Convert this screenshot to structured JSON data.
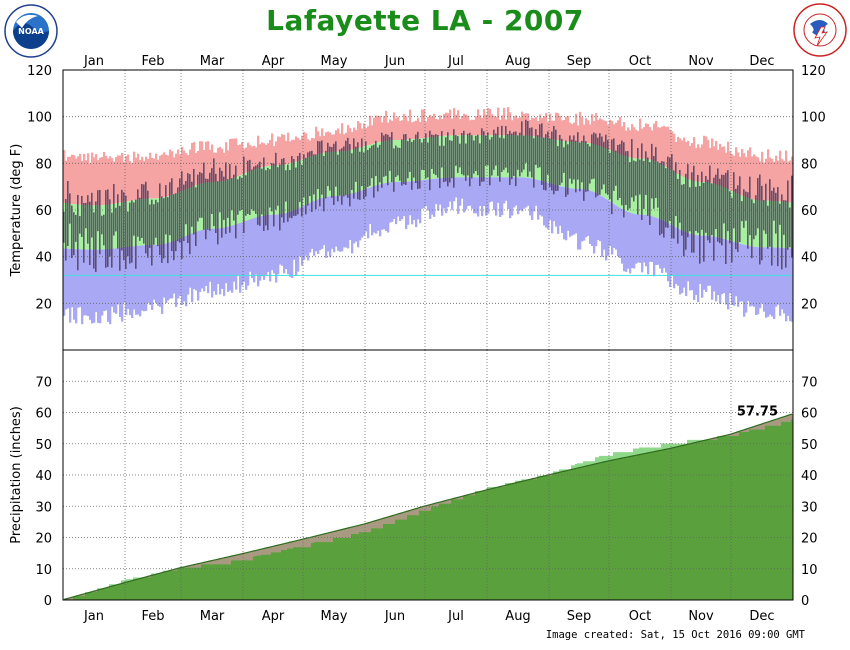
{
  "title": "Lafayette LA - 2007",
  "logos": {
    "noaa": "NOAA",
    "nws": "NATIONAL WEATHER SERVICE"
  },
  "footer": {
    "created": "Image created: Sat, 15 Oct 2016 09:00 GMT"
  },
  "colors": {
    "record_high": "#f5a3a3",
    "normal_range": "#a6f0a0",
    "record_low": "#a8a8f5",
    "observed": "#4a3a5a",
    "freezing_line": "#40e0e0",
    "precip_observed": "#5aa03c",
    "precip_normal": "#8fd88a",
    "precip_below": "#a89a80",
    "title": "#1a8c1a"
  },
  "chart_data": [
    {
      "type": "area",
      "panel": "temperature",
      "ylabel": "Temperature (deg F)",
      "ylim": [
        0,
        120
      ],
      "yticks": [
        20,
        40,
        60,
        80,
        100,
        120
      ],
      "months": [
        "Jan",
        "Feb",
        "Mar",
        "Apr",
        "May",
        "Jun",
        "Jul",
        "Aug",
        "Sep",
        "Oct",
        "Nov",
        "Dec"
      ],
      "grid": true,
      "freezing_line": 32,
      "series": [
        {
          "name": "record_high",
          "months": [
            81,
            82,
            86,
            89,
            93,
            99,
            100,
            100,
            98,
            95,
            88,
            82
          ]
        },
        {
          "name": "normal_high",
          "months": [
            62,
            65,
            72,
            79,
            85,
            90,
            92,
            92,
            89,
            82,
            72,
            64
          ]
        },
        {
          "name": "normal_low",
          "months": [
            43,
            45,
            52,
            58,
            66,
            72,
            74,
            74,
            69,
            58,
            49,
            44
          ]
        },
        {
          "name": "record_low",
          "months": [
            16,
            20,
            27,
            34,
            45,
            56,
            63,
            62,
            48,
            37,
            26,
            18
          ]
        },
        {
          "name": "observed_high",
          "months": [
            64,
            66,
            77,
            80,
            87,
            90,
            91,
            95,
            90,
            85,
            74,
            69
          ]
        },
        {
          "name": "observed_low",
          "months": [
            42,
            40,
            52,
            57,
            65,
            72,
            74,
            75,
            70,
            60,
            45,
            46
          ]
        }
      ]
    },
    {
      "type": "area",
      "panel": "precipitation",
      "ylabel": "Precipitation (inches)",
      "ylim": [
        0,
        80
      ],
      "yticks": [
        0,
        10,
        20,
        30,
        40,
        50,
        60,
        70
      ],
      "months": [
        "Jan",
        "Feb",
        "Mar",
        "Apr",
        "May",
        "Jun",
        "Jul",
        "Aug",
        "Sep",
        "Oct",
        "Nov",
        "Dec"
      ],
      "grid": true,
      "annotation": "57.75",
      "series": [
        {
          "name": "normal_cumulative",
          "month_end": [
            5.5,
            10.3,
            14.8,
            19.4,
            24.3,
            30.0,
            35.2,
            40.0,
            44.5,
            48.5,
            53.0,
            59.5
          ]
        },
        {
          "name": "observed_cumulative",
          "month_end": [
            6.5,
            10.5,
            13.0,
            17.5,
            22.0,
            29.0,
            36.0,
            40.5,
            47.0,
            50.5,
            53.0,
            57.75
          ]
        }
      ]
    }
  ]
}
